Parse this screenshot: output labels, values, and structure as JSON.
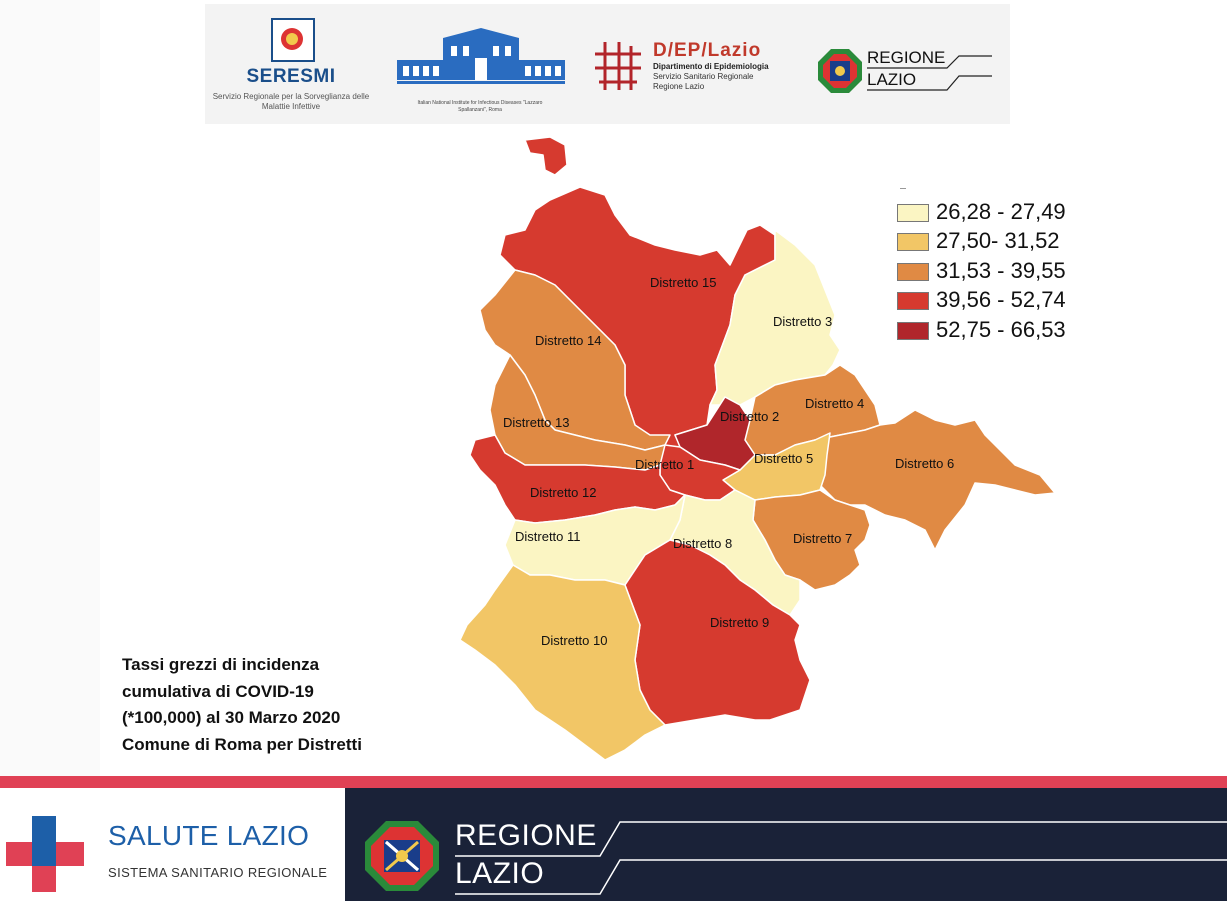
{
  "logos": {
    "seresmi_name": "SERESMI",
    "seresmi_sub": "Servizio Regionale per la Sorveglianza delle Malattie Infettive",
    "spallanzani_sub": "Italian National Institute for Infectious Diseases \"Lazzaro Spallanzani\", Roma",
    "dep_brand": "D/EP/Lazio",
    "dep_line1": "Dipartimento di Epidemiologia",
    "dep_line2": "Servizio Sanitario Regionale",
    "dep_line3": "Regione Lazio",
    "regione_line1": "REGIONE",
    "regione_line2": "LAZIO"
  },
  "map": {
    "legend": [
      {
        "label": "26,28 - 27,49",
        "color": "#fbf5c3"
      },
      {
        "label": "27,50- 31,52",
        "color": "#f2c666"
      },
      {
        "label": "31,53 - 39,55",
        "color": "#e08a44"
      },
      {
        "label": "39,56 - 52,74",
        "color": "#d63a2f"
      },
      {
        "label": "52,75 - 66,53",
        "color": "#b0262b"
      }
    ],
    "districts": [
      {
        "label": "Distretto 1",
        "class": 4
      },
      {
        "label": "Distretto 2",
        "class": 5
      },
      {
        "label": "Distretto 3",
        "class": 1
      },
      {
        "label": "Distretto 4",
        "class": 3
      },
      {
        "label": "Distretto 5",
        "class": 2
      },
      {
        "label": "Distretto 6",
        "class": 3
      },
      {
        "label": "Distretto 7",
        "class": 3
      },
      {
        "label": "Distretto 8",
        "class": 1
      },
      {
        "label": "Distretto 9",
        "class": 4
      },
      {
        "label": "Distretto 10",
        "class": 2
      },
      {
        "label": "Distretto 11",
        "class": 1
      },
      {
        "label": "Distretto 12",
        "class": 4
      },
      {
        "label": "Distretto 13",
        "class": 3
      },
      {
        "label": "Distretto 14",
        "class": 3
      },
      {
        "label": "Distretto 15",
        "class": 4
      }
    ]
  },
  "caption": {
    "line1": "Tassi grezzi di incidenza",
    "line2": "cumulativa di COVID-19",
    "line3": "(*100,000) al 30 Marzo 2020",
    "line4": "Comune di Roma per Distretti"
  },
  "footer": {
    "salute_title": "SALUTE LAZIO",
    "salute_sub": "SISTEMA SANITARIO REGIONALE",
    "regione_line1": "REGIONE",
    "regione_line2": "LAZIO",
    "colors": {
      "red": "#e04155",
      "navy": "#1a2238",
      "blue": "#1d5fa8"
    }
  }
}
